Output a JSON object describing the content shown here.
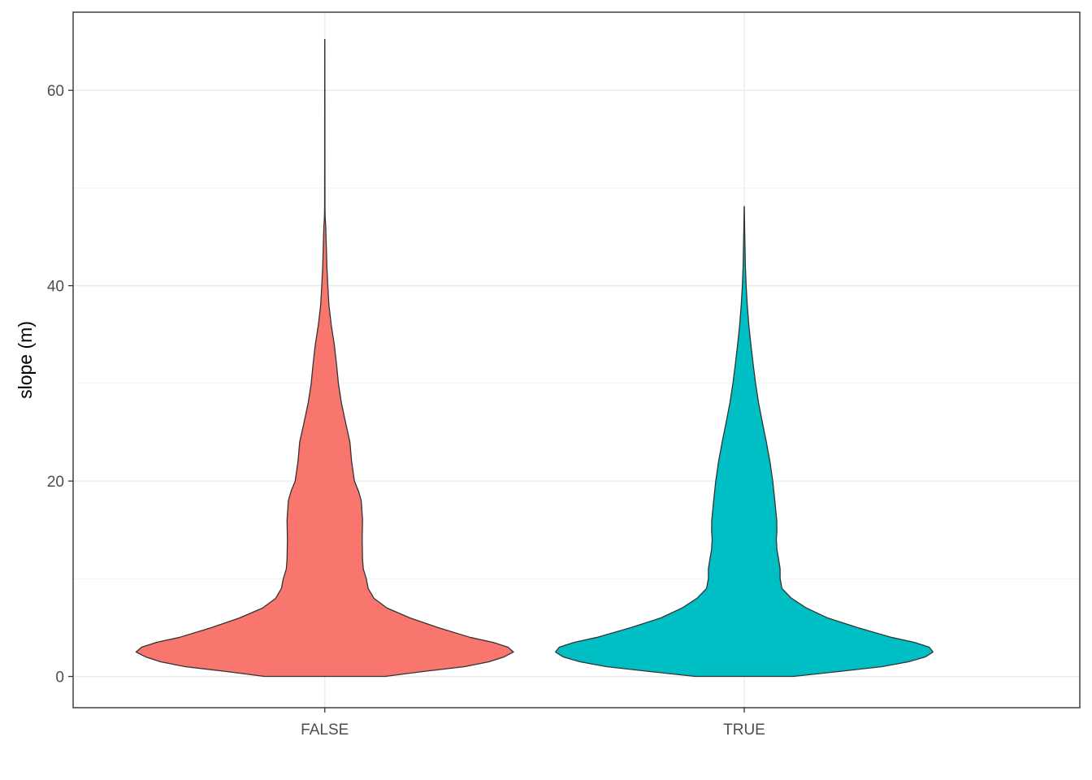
{
  "chart_data": {
    "type": "violin",
    "title": "",
    "xlabel": "",
    "ylabel": "slope (m)",
    "categories": [
      "FALSE",
      "TRUE"
    ],
    "colors": [
      "#F8766D",
      "#00BFC4"
    ],
    "ylim": [
      -3.2,
      68
    ],
    "yticks": [
      0,
      20,
      40,
      60
    ],
    "grid": true,
    "legend": "none",
    "series": [
      {
        "category": "FALSE",
        "ymin": 0,
        "ymax": 65.2,
        "profile": [
          [
            0,
            0.32
          ],
          [
            0.5,
            0.52
          ],
          [
            1,
            0.74
          ],
          [
            1.5,
            0.87
          ],
          [
            2,
            0.95
          ],
          [
            2.5,
            1.0
          ],
          [
            3,
            0.97
          ],
          [
            3.5,
            0.89
          ],
          [
            4,
            0.77
          ],
          [
            5,
            0.6
          ],
          [
            6,
            0.45
          ],
          [
            7,
            0.33
          ],
          [
            8,
            0.26
          ],
          [
            9,
            0.23
          ],
          [
            10,
            0.22
          ],
          [
            11,
            0.204
          ],
          [
            12,
            0.2
          ],
          [
            14,
            0.198
          ],
          [
            16,
            0.2
          ],
          [
            18,
            0.193
          ],
          [
            19,
            0.178
          ],
          [
            20,
            0.157
          ],
          [
            22,
            0.142
          ],
          [
            24,
            0.133
          ],
          [
            26,
            0.11
          ],
          [
            28,
            0.088
          ],
          [
            30,
            0.072
          ],
          [
            32,
            0.062
          ],
          [
            34,
            0.05
          ],
          [
            36,
            0.034
          ],
          [
            38,
            0.022
          ],
          [
            40,
            0.016
          ],
          [
            42,
            0.011
          ],
          [
            44,
            0.008
          ],
          [
            46,
            0.005
          ],
          [
            47,
            0.002
          ],
          [
            48,
            0.001
          ],
          [
            60,
            0.0005
          ],
          [
            65.2,
            0.0003
          ]
        ]
      },
      {
        "category": "TRUE",
        "ymin": 0,
        "ymax": 48.1,
        "profile": [
          [
            0,
            0.26
          ],
          [
            0.5,
            0.5
          ],
          [
            1,
            0.73
          ],
          [
            1.5,
            0.87
          ],
          [
            2,
            0.96
          ],
          [
            2.5,
            1.0
          ],
          [
            3,
            0.98
          ],
          [
            3.5,
            0.9
          ],
          [
            4,
            0.78
          ],
          [
            5,
            0.6
          ],
          [
            6,
            0.44
          ],
          [
            7,
            0.33
          ],
          [
            8,
            0.25
          ],
          [
            9,
            0.2
          ],
          [
            10,
            0.19
          ],
          [
            11,
            0.19
          ],
          [
            12,
            0.182
          ],
          [
            13,
            0.173
          ],
          [
            14,
            0.17
          ],
          [
            15,
            0.173
          ],
          [
            16,
            0.172
          ],
          [
            18,
            0.162
          ],
          [
            20,
            0.151
          ],
          [
            22,
            0.136
          ],
          [
            24,
            0.117
          ],
          [
            26,
            0.096
          ],
          [
            28,
            0.076
          ],
          [
            30,
            0.06
          ],
          [
            32,
            0.047
          ],
          [
            34,
            0.035
          ],
          [
            36,
            0.024
          ],
          [
            38,
            0.016
          ],
          [
            40,
            0.01
          ],
          [
            42,
            0.006
          ],
          [
            44,
            0.004
          ],
          [
            46,
            0.002
          ],
          [
            48.1,
            0.0005
          ]
        ]
      }
    ]
  }
}
